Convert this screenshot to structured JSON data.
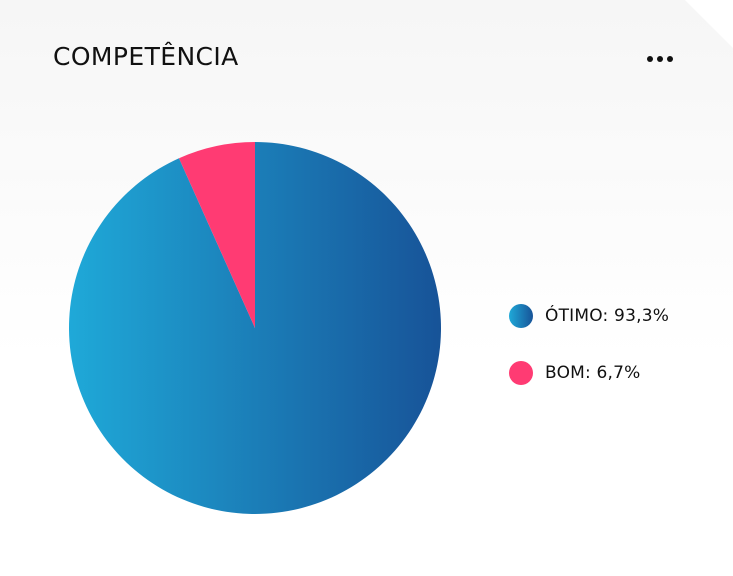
{
  "card": {
    "title": "COMPETÊNCIA",
    "menu_icon": "more-horizontal-icon"
  },
  "colors": {
    "otimo_start": "#1fa9d8",
    "otimo_end": "#175398",
    "bom": "#ff3b73",
    "text": "#111111"
  },
  "legend": [
    {
      "label": "ÓTIMO: 93,3%",
      "series": "ÓTIMO"
    },
    {
      "label": "BOM: 6,7%",
      "series": "BOM"
    }
  ],
  "chart_data": {
    "type": "pie",
    "title": "COMPETÊNCIA",
    "slices": [
      {
        "label": "ÓTIMO",
        "value": 93.3
      },
      {
        "label": "BOM",
        "value": 6.7
      }
    ],
    "start_angle_deg": 0,
    "direction": "clockwise",
    "legend_position": "right"
  }
}
